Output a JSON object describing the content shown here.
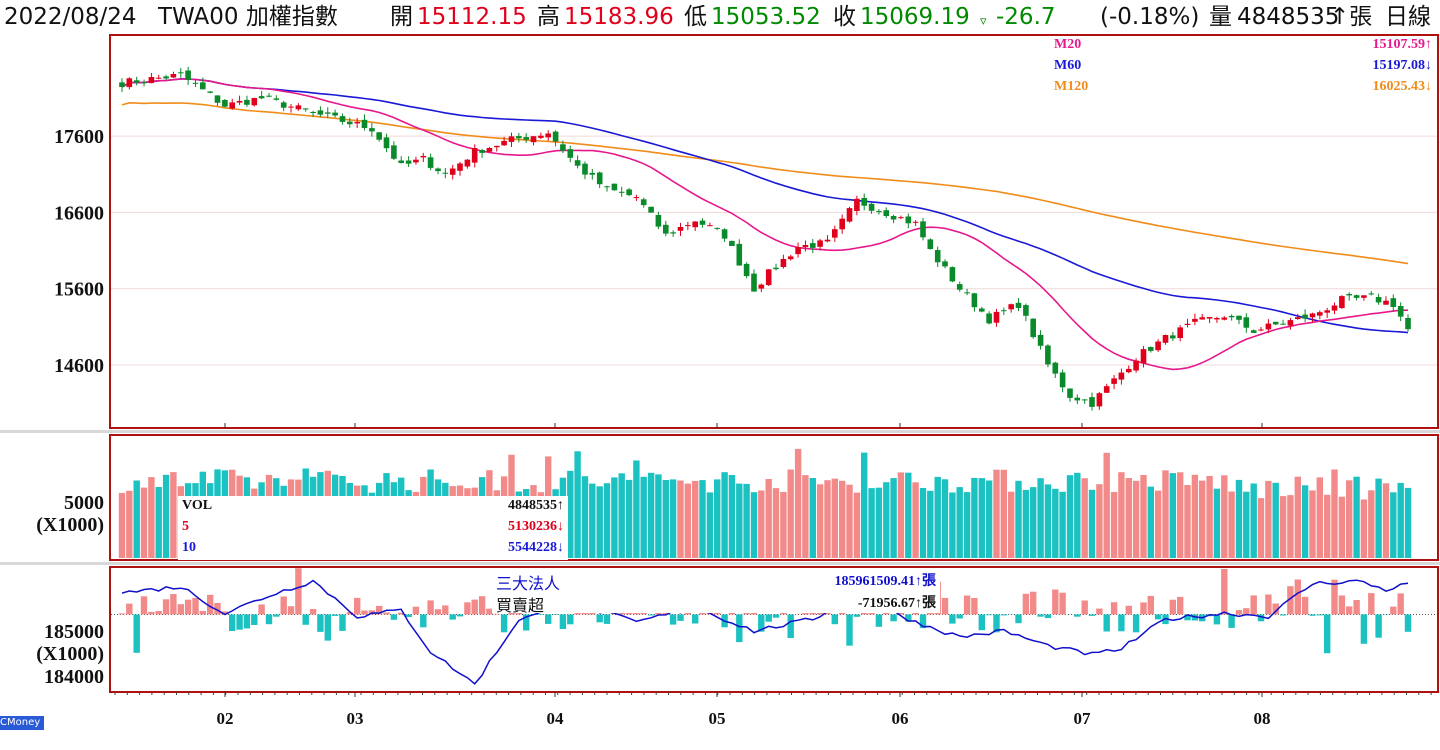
{
  "header": {
    "date": "2022/08/24",
    "code_name": "TWA00 加權指數",
    "open_label": "開",
    "open_value": "15112.15",
    "high_label": "高",
    "high_value": "15183.96",
    "low_label": "低",
    "low_value": "15053.52",
    "close_label": "收",
    "close_value": "15069.19",
    "change_symbol": "▿",
    "change_value": "-26.7",
    "change_pct": "(-0.18%)",
    "volume_label": "量",
    "volume_value": "4848535",
    "volume_unit": "↑張",
    "period": "日線"
  },
  "ma_legend": [
    {
      "name": "M20",
      "value": "15107.59↑",
      "color": "#e6198c"
    },
    {
      "name": "M60",
      "value": "15197.08↓",
      "color": "#1a1ad6"
    },
    {
      "name": "M120",
      "value": "16025.43↓",
      "color": "#f08c1a"
    }
  ],
  "volume_legend": [
    {
      "name": "VOL",
      "value": "4848535↑",
      "color": "#111111"
    },
    {
      "name": "5",
      "value": "5130236↓",
      "color": "#e0001b"
    },
    {
      "name": "10",
      "value": "5544228↓",
      "color": "#1a1ad6"
    }
  ],
  "inst_legend": {
    "line1_label": "三大法人",
    "line1_value": "185961509.41↑張",
    "line2_label": "買賣超",
    "line2_value": "-71956.67↑張"
  },
  "colors": {
    "up": "#e0001b",
    "down": "#0a8a2a",
    "vol_up": "#f28a8a",
    "vol_down": "#1cc2c2",
    "frame": "#b01010",
    "inst_line": "#1010cc"
  },
  "credit": "CMoney",
  "chart_data": {
    "type": "candlestick",
    "price_axis": {
      "ticks": [
        "17600",
        "16600",
        "15600",
        "14600"
      ],
      "range": [
        13800,
        18900
      ]
    },
    "volume_axis": {
      "ticks": [
        "5000"
      ],
      "unit_label": "(X1000)",
      "range": [
        0,
        8000
      ]
    },
    "inst_axis": {
      "ticks": [
        "185000",
        "184000"
      ],
      "unit_label": "(X1000)",
      "range": [
        183700,
        185750
      ]
    },
    "x_labels": [
      "02",
      "03",
      "04",
      "05",
      "06",
      "07",
      "08"
    ],
    "months_approx": [
      {
        "month": "01",
        "close_range": [
          17800,
          18500
        ]
      },
      {
        "month": "02",
        "close_range": [
          17700,
          18200
        ]
      },
      {
        "month": "03",
        "close_range": [
          16700,
          17900
        ]
      },
      {
        "month": "04",
        "close_range": [
          16200,
          17700
        ]
      },
      {
        "month": "05",
        "close_range": [
          15600,
          16500
        ]
      },
      {
        "month": "06",
        "close_range": [
          14900,
          16800
        ]
      },
      {
        "month": "07",
        "close_range": [
          14200,
          15200
        ]
      },
      {
        "month": "08",
        "close_range": [
          15000,
          15500
        ]
      }
    ],
    "last_close": 15069.19
  }
}
